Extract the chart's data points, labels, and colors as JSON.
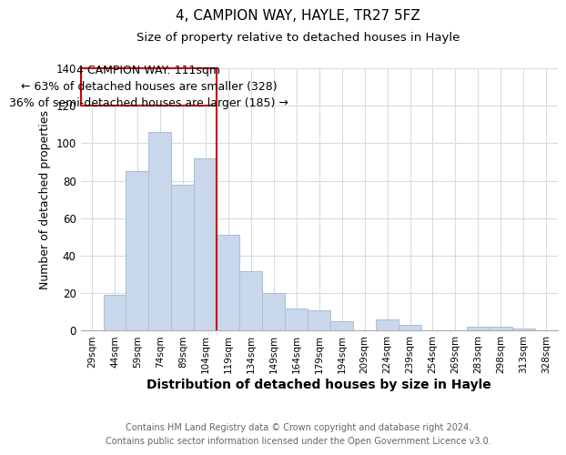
{
  "title": "4, CAMPION WAY, HAYLE, TR27 5FZ",
  "subtitle": "Size of property relative to detached houses in Hayle",
  "xlabel": "Distribution of detached houses by size in Hayle",
  "ylabel": "Number of detached properties",
  "bar_labels": [
    "29sqm",
    "44sqm",
    "59sqm",
    "74sqm",
    "89sqm",
    "104sqm",
    "119sqm",
    "134sqm",
    "149sqm",
    "164sqm",
    "179sqm",
    "194sqm",
    "209sqm",
    "224sqm",
    "239sqm",
    "254sqm",
    "269sqm",
    "283sqm",
    "298sqm",
    "313sqm",
    "328sqm"
  ],
  "bar_heights": [
    0,
    19,
    85,
    106,
    78,
    92,
    51,
    32,
    20,
    12,
    11,
    5,
    0,
    6,
    3,
    0,
    0,
    2,
    2,
    1,
    0
  ],
  "bar_color": "#c8d8ea",
  "bar_edge_color": "#a8bece",
  "vline_x_idx": 5,
  "vline_color": "#cc0000",
  "ylim": [
    0,
    140
  ],
  "yticks": [
    0,
    20,
    40,
    60,
    80,
    100,
    120,
    140
  ],
  "annotation_title": "4 CAMPION WAY: 111sqm",
  "annotation_line1": "← 63% of detached houses are smaller (328)",
  "annotation_line2": "36% of semi-detached houses are larger (185) →",
  "annotation_box_color": "#ffffff",
  "annotation_box_edge": "#cc0000",
  "footer1": "Contains HM Land Registry data © Crown copyright and database right 2024.",
  "footer2": "Contains public sector information licensed under the Open Government Licence v3.0.",
  "title_fontsize": 11,
  "subtitle_fontsize": 9.5,
  "xlabel_fontsize": 10,
  "ylabel_fontsize": 9,
  "annotation_fontsize": 9,
  "footer_fontsize": 7,
  "grid_color": "#d0dce8"
}
